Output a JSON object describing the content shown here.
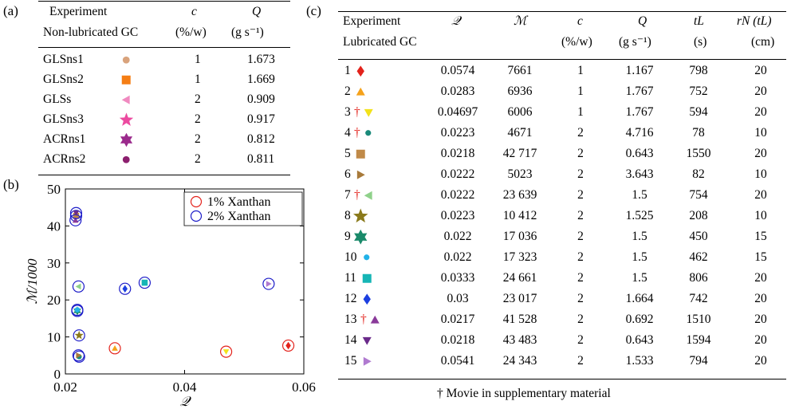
{
  "panel_labels": {
    "a": "(a)",
    "b": "(b)",
    "c": "(c)"
  },
  "table_a": {
    "header": {
      "experiment": "Experiment",
      "group": "Non-lubricated GC",
      "c_symbol": "c",
      "c_unit": "(%/w)",
      "q_symbol": "Q",
      "q_unit": "(g s⁻¹)"
    },
    "rows": [
      {
        "name": "GLSns1",
        "c": "1",
        "q": "1.673",
        "marker": "circle",
        "color": "#d9a37c"
      },
      {
        "name": "GLSns2",
        "c": "1",
        "q": "1.669",
        "marker": "square",
        "color": "#f57e14"
      },
      {
        "name": "GLSs",
        "c": "2",
        "q": "0.909",
        "marker": "triangle-left",
        "color": "#f08ac0"
      },
      {
        "name": "GLSns3",
        "c": "2",
        "q": "0.917",
        "marker": "star5",
        "color": "#ec4aa0"
      },
      {
        "name": "ACRns1",
        "c": "2",
        "q": "0.812",
        "marker": "star6",
        "color": "#9b2a8c"
      },
      {
        "name": "ACRns2",
        "c": "2",
        "q": "0.811",
        "marker": "circle",
        "color": "#8c1f6e"
      }
    ]
  },
  "table_c": {
    "header": {
      "experiment": "Experiment",
      "group": "Lubricated GC",
      "Q_script": "𝒬",
      "M_script": "ℳ",
      "c_symbol": "c",
      "c_unit": "(%/w)",
      "q_symbol": "Q",
      "q_unit": "(g s⁻¹)",
      "tl_symbol": "tL",
      "tl_unit": "(s)",
      "rn_symbol": "rN (tL)",
      "rn_unit": "(cm)"
    },
    "rows": [
      {
        "id": "1",
        "dagger": "",
        "marker": "diamond",
        "color": "#e3221b",
        "Q": "0.0574",
        "M": "7661",
        "c": "1",
        "q": "1.167",
        "tl": "798",
        "rn": "20"
      },
      {
        "id": "2",
        "dagger": "",
        "marker": "triangle-up",
        "color": "#f5a21b",
        "Q": "0.0283",
        "M": "6936",
        "c": "1",
        "q": "1.767",
        "tl": "752",
        "rn": "20"
      },
      {
        "id": "3",
        "dagger": "†",
        "marker": "triangle-down",
        "color": "#f2e21b",
        "Q": "0.04697",
        "M": "6006",
        "c": "1",
        "q": "1.767",
        "tl": "594",
        "rn": "20"
      },
      {
        "id": "4",
        "dagger": "†",
        "marker": "circle",
        "color": "#1a8a7a",
        "Q": "0.0223",
        "M": "4671",
        "c": "2",
        "q": "4.716",
        "tl": "78",
        "rn": "10"
      },
      {
        "id": "5",
        "dagger": "",
        "marker": "square",
        "color": "#c08a48",
        "Q": "0.0218",
        "M": "42 717",
        "c": "2",
        "q": "0.643",
        "tl": "1550",
        "rn": "20"
      },
      {
        "id": "6",
        "dagger": "",
        "marker": "triangle-right",
        "color": "#a87a3a",
        "Q": "0.0222",
        "M": "5023",
        "c": "2",
        "q": "3.643",
        "tl": "82",
        "rn": "10"
      },
      {
        "id": "7",
        "dagger": "†",
        "marker": "triangle-left",
        "color": "#8fd18a",
        "Q": "0.0222",
        "M": "23 639",
        "c": "2",
        "q": "1.5",
        "tl": "754",
        "rn": "20"
      },
      {
        "id": "8",
        "dagger": "",
        "marker": "star5",
        "color": "#8a7a1b",
        "Q": "0.0223",
        "M": "10 412",
        "c": "2",
        "q": "1.525",
        "tl": "208",
        "rn": "10"
      },
      {
        "id": "9",
        "dagger": "",
        "marker": "star6",
        "color": "#1a8a6a",
        "Q": "0.022",
        "M": "17 036",
        "c": "2",
        "q": "1.5",
        "tl": "450",
        "rn": "15"
      },
      {
        "id": "10",
        "dagger": "",
        "marker": "circle",
        "color": "#21b2e8",
        "Q": "0.022",
        "M": "17 323",
        "c": "2",
        "q": "1.5",
        "tl": "462",
        "rn": "15"
      },
      {
        "id": "11",
        "dagger": "",
        "marker": "square",
        "color": "#16b5b5",
        "Q": "0.0333",
        "M": "24 661",
        "c": "2",
        "q": "1.5",
        "tl": "806",
        "rn": "20"
      },
      {
        "id": "12",
        "dagger": "",
        "marker": "diamond",
        "color": "#1c3fe0",
        "Q": "0.03",
        "M": "23 017",
        "c": "2",
        "q": "1.664",
        "tl": "742",
        "rn": "20"
      },
      {
        "id": "13",
        "dagger": "†",
        "marker": "triangle-up",
        "color": "#8a3a9a",
        "Q": "0.0217",
        "M": "41 528",
        "c": "2",
        "q": "0.692",
        "tl": "1510",
        "rn": "20"
      },
      {
        "id": "14",
        "dagger": "",
        "marker": "triangle-down",
        "color": "#6a2a8a",
        "Q": "0.0218",
        "M": "43 483",
        "c": "2",
        "q": "0.643",
        "tl": "1594",
        "rn": "20"
      },
      {
        "id": "15",
        "dagger": "",
        "marker": "triangle-right",
        "color": "#b07ad0",
        "Q": "0.0541",
        "M": "24 343",
        "c": "2",
        "q": "1.533",
        "tl": "794",
        "rn": "20"
      }
    ],
    "footnote": "† Movie in supplementary material"
  },
  "chart_data": {
    "type": "scatter",
    "xlabel": "𝒬",
    "ylabel": "ℳ/1000",
    "xlim": [
      0.02,
      0.06
    ],
    "ylim": [
      0,
      50
    ],
    "xticks": [
      "0.02",
      "0.04",
      "0.06"
    ],
    "yticks": [
      "0",
      "10",
      "20",
      "30",
      "40",
      "50"
    ],
    "legend": {
      "placement": "top-right",
      "entries": [
        {
          "label": "1% Xanthan",
          "color": "#e3221b"
        },
        {
          "label": "2% Xanthan",
          "color": "#1c1cc8"
        }
      ]
    },
    "series": [
      {
        "ring": "#e3221b",
        "points": [
          {
            "x": 0.0574,
            "y": 7.661,
            "marker": "diamond",
            "color": "#e3221b"
          },
          {
            "x": 0.0283,
            "y": 6.936,
            "marker": "triangle-up",
            "color": "#f5a21b"
          },
          {
            "x": 0.04697,
            "y": 6.006,
            "marker": "triangle-down",
            "color": "#f2e21b"
          }
        ]
      },
      {
        "ring": "#1c1cc8",
        "points": [
          {
            "x": 0.0223,
            "y": 4.671,
            "marker": "circle",
            "color": "#1a8a7a"
          },
          {
            "x": 0.0218,
            "y": 42.717,
            "marker": "square",
            "color": "#c08a48"
          },
          {
            "x": 0.0222,
            "y": 5.023,
            "marker": "triangle-right",
            "color": "#a87a3a"
          },
          {
            "x": 0.0222,
            "y": 23.639,
            "marker": "triangle-left",
            "color": "#8fd18a"
          },
          {
            "x": 0.0223,
            "y": 10.412,
            "marker": "star5",
            "color": "#8a7a1b"
          },
          {
            "x": 0.022,
            "y": 17.036,
            "marker": "star6",
            "color": "#1a8a6a"
          },
          {
            "x": 0.022,
            "y": 17.323,
            "marker": "circle",
            "color": "#21b2e8"
          },
          {
            "x": 0.0333,
            "y": 24.661,
            "marker": "square",
            "color": "#16b5b5"
          },
          {
            "x": 0.03,
            "y": 23.017,
            "marker": "diamond",
            "color": "#1c3fe0"
          },
          {
            "x": 0.0217,
            "y": 41.528,
            "marker": "triangle-up",
            "color": "#8a3a9a"
          },
          {
            "x": 0.0218,
            "y": 43.483,
            "marker": "triangle-down",
            "color": "#6a2a8a"
          },
          {
            "x": 0.0541,
            "y": 24.343,
            "marker": "triangle-right",
            "color": "#b07ad0"
          }
        ]
      }
    ]
  }
}
